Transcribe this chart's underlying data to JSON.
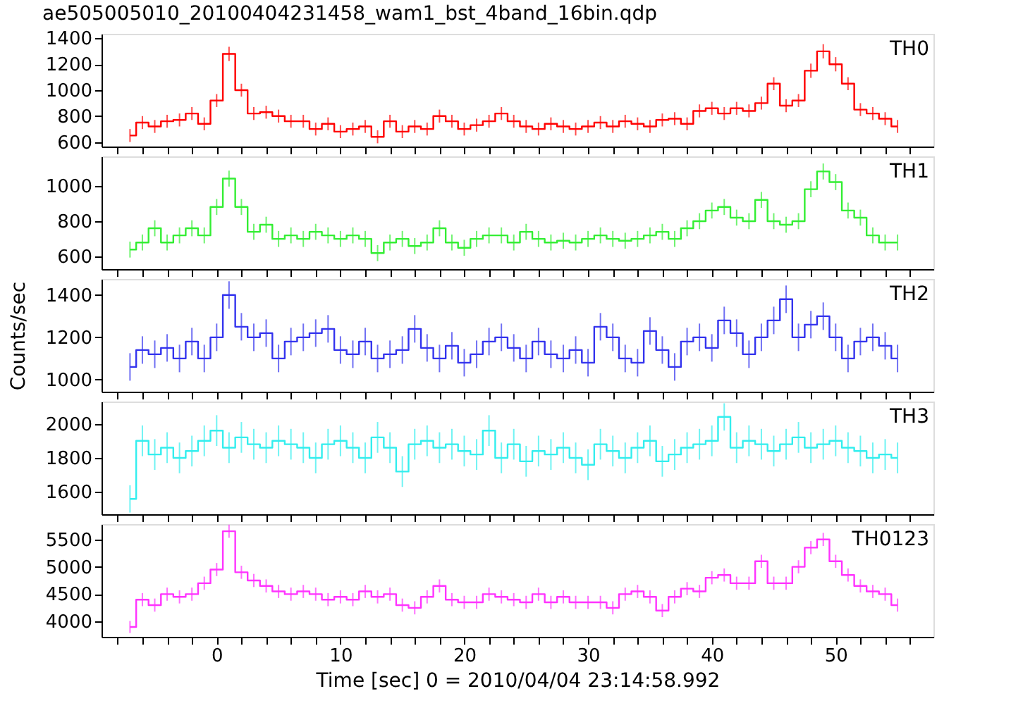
{
  "chart_data": [
    {
      "type": "step",
      "title": "ae505005010_20100404231458_wam1_bst_4band_16bin.qdp",
      "tick_labels": "y",
      "marker": "none",
      "grid": false,
      "xlim": [
        -9.3,
        57.9
      ],
      "ylim": [
        565,
        1435
      ],
      "yticks": [
        600,
        800,
        1000,
        1200,
        1400
      ],
      "xticks": [
        {
          "value": -8,
          "label": null
        },
        {
          "value": -6,
          "label": null
        },
        {
          "value": -4,
          "label": null
        },
        {
          "value": -2,
          "label": null
        },
        0,
        {
          "value": 2,
          "label": null
        },
        {
          "value": 4,
          "label": null
        },
        {
          "value": 6,
          "label": null
        },
        {
          "value": 8,
          "label": null
        },
        10,
        {
          "value": 12,
          "label": null
        },
        {
          "value": 14,
          "label": null
        },
        {
          "value": 16,
          "label": null
        },
        {
          "value": 18,
          "label": null
        },
        20,
        {
          "value": 22,
          "label": null
        },
        {
          "value": 24,
          "label": null
        },
        {
          "value": 26,
          "label": null
        },
        {
          "value": 28,
          "label": null
        },
        30,
        {
          "value": 32,
          "label": null
        },
        {
          "value": 34,
          "label": null
        },
        {
          "value": 36,
          "label": null
        },
        {
          "value": 38,
          "label": null
        },
        40,
        {
          "value": 42,
          "label": null
        },
        {
          "value": 44,
          "label": null
        },
        {
          "value": 46,
          "label": null
        },
        {
          "value": 48,
          "label": null
        },
        50,
        {
          "value": 52,
          "label": null
        },
        {
          "value": 54,
          "label": null
        },
        {
          "value": 56,
          "label": null
        }
      ],
      "x": [
        -7,
        -6,
        -5,
        -4,
        -3,
        -2,
        -1,
        0,
        1,
        2,
        3,
        4,
        5,
        6,
        7,
        8,
        9,
        10,
        11,
        12,
        13,
        14,
        15,
        16,
        17,
        18,
        19,
        20,
        21,
        22,
        23,
        24,
        25,
        26,
        27,
        28,
        29,
        30,
        31,
        32,
        33,
        34,
        35,
        36,
        37,
        38,
        39,
        40,
        41,
        42,
        43,
        44,
        45,
        46,
        47,
        48,
        49,
        50,
        51,
        52,
        53,
        54,
        55
      ],
      "series": [
        {
          "name": "TH0",
          "color": "#ff0000",
          "values": [
            650,
            750,
            720,
            760,
            770,
            820,
            740,
            920,
            1280,
            1000,
            820,
            830,
            800,
            760,
            760,
            700,
            740,
            680,
            700,
            720,
            640,
            760,
            680,
            720,
            700,
            800,
            760,
            700,
            730,
            760,
            820,
            760,
            720,
            700,
            740,
            720,
            700,
            720,
            750,
            720,
            760,
            740,
            720,
            770,
            780,
            740,
            840,
            860,
            820,
            860,
            840,
            900,
            1050,
            880,
            920,
            1150,
            1300,
            1200,
            1050,
            850,
            820,
            780,
            720
          ],
          "errors": [
            50,
            50,
            50,
            50,
            50,
            50,
            50,
            50,
            55,
            50,
            50,
            50,
            50,
            50,
            50,
            50,
            50,
            50,
            50,
            50,
            50,
            50,
            50,
            50,
            50,
            50,
            50,
            50,
            50,
            50,
            50,
            50,
            50,
            50,
            50,
            50,
            50,
            50,
            50,
            50,
            50,
            50,
            50,
            50,
            50,
            50,
            50,
            50,
            50,
            50,
            50,
            50,
            50,
            50,
            50,
            55,
            55,
            55,
            50,
            50,
            50,
            50,
            50
          ]
        }
      ]
    },
    {
      "type": "step",
      "tick_labels": "y",
      "marker": "none",
      "grid": false,
      "xlim": [
        -9.3,
        57.9
      ],
      "ylim": [
        530,
        1165
      ],
      "yticks": [
        600,
        800,
        1000
      ],
      "xticks": [
        {
          "value": -8,
          "label": null
        },
        {
          "value": -6,
          "label": null
        },
        {
          "value": -4,
          "label": null
        },
        {
          "value": -2,
          "label": null
        },
        0,
        {
          "value": 2,
          "label": null
        },
        {
          "value": 4,
          "label": null
        },
        {
          "value": 6,
          "label": null
        },
        {
          "value": 8,
          "label": null
        },
        10,
        {
          "value": 12,
          "label": null
        },
        {
          "value": 14,
          "label": null
        },
        {
          "value": 16,
          "label": null
        },
        {
          "value": 18,
          "label": null
        },
        20,
        {
          "value": 22,
          "label": null
        },
        {
          "value": 24,
          "label": null
        },
        {
          "value": 26,
          "label": null
        },
        {
          "value": 28,
          "label": null
        },
        30,
        {
          "value": 32,
          "label": null
        },
        {
          "value": 34,
          "label": null
        },
        {
          "value": 36,
          "label": null
        },
        {
          "value": 38,
          "label": null
        },
        40,
        {
          "value": 42,
          "label": null
        },
        {
          "value": 44,
          "label": null
        },
        {
          "value": 46,
          "label": null
        },
        {
          "value": 48,
          "label": null
        },
        50,
        {
          "value": 52,
          "label": null
        },
        {
          "value": 54,
          "label": null
        },
        {
          "value": 56,
          "label": null
        }
      ],
      "x": [
        -7,
        -6,
        -5,
        -4,
        -3,
        -2,
        -1,
        0,
        1,
        2,
        3,
        4,
        5,
        6,
        7,
        8,
        9,
        10,
        11,
        12,
        13,
        14,
        15,
        16,
        17,
        18,
        19,
        20,
        21,
        22,
        23,
        24,
        25,
        26,
        27,
        28,
        29,
        30,
        31,
        32,
        33,
        34,
        35,
        36,
        37,
        38,
        39,
        40,
        41,
        42,
        43,
        44,
        45,
        46,
        47,
        48,
        49,
        50,
        51,
        52,
        53,
        54,
        55
      ],
      "series": [
        {
          "name": "TH1",
          "color": "#33ee33",
          "values": [
            640,
            680,
            760,
            680,
            720,
            760,
            720,
            880,
            1040,
            880,
            740,
            780,
            700,
            720,
            700,
            740,
            720,
            700,
            720,
            700,
            620,
            680,
            700,
            660,
            680,
            760,
            680,
            650,
            700,
            720,
            720,
            680,
            740,
            700,
            680,
            690,
            680,
            700,
            720,
            700,
            690,
            700,
            720,
            740,
            700,
            760,
            800,
            860,
            880,
            820,
            800,
            920,
            800,
            780,
            800,
            980,
            1080,
            1020,
            860,
            820,
            720,
            680,
            680
          ],
          "errors": [
            45,
            45,
            45,
            45,
            45,
            45,
            45,
            45,
            45,
            45,
            45,
            45,
            45,
            45,
            45,
            45,
            45,
            45,
            45,
            45,
            45,
            45,
            45,
            45,
            45,
            45,
            45,
            45,
            45,
            45,
            45,
            45,
            45,
            45,
            45,
            45,
            45,
            45,
            45,
            45,
            45,
            45,
            45,
            45,
            45,
            45,
            45,
            45,
            45,
            45,
            45,
            45,
            45,
            45,
            45,
            45,
            45,
            45,
            45,
            45,
            45,
            45,
            45
          ]
        }
      ]
    },
    {
      "type": "step",
      "ylabel": "Counts/sec",
      "tick_labels": "y",
      "marker": "none",
      "grid": false,
      "xlim": [
        -9.3,
        57.9
      ],
      "ylim": [
        943,
        1476
      ],
      "yticks": [
        1000,
        1200,
        1400
      ],
      "xticks": [
        {
          "value": -8,
          "label": null
        },
        {
          "value": -6,
          "label": null
        },
        {
          "value": -4,
          "label": null
        },
        {
          "value": -2,
          "label": null
        },
        0,
        {
          "value": 2,
          "label": null
        },
        {
          "value": 4,
          "label": null
        },
        {
          "value": 6,
          "label": null
        },
        {
          "value": 8,
          "label": null
        },
        10,
        {
          "value": 12,
          "label": null
        },
        {
          "value": 14,
          "label": null
        },
        {
          "value": 16,
          "label": null
        },
        {
          "value": 18,
          "label": null
        },
        20,
        {
          "value": 22,
          "label": null
        },
        {
          "value": 24,
          "label": null
        },
        {
          "value": 26,
          "label": null
        },
        {
          "value": 28,
          "label": null
        },
        30,
        {
          "value": 32,
          "label": null
        },
        {
          "value": 34,
          "label": null
        },
        {
          "value": 36,
          "label": null
        },
        {
          "value": 38,
          "label": null
        },
        40,
        {
          "value": 42,
          "label": null
        },
        {
          "value": 44,
          "label": null
        },
        {
          "value": 46,
          "label": null
        },
        {
          "value": 48,
          "label": null
        },
        50,
        {
          "value": 52,
          "label": null
        },
        {
          "value": 54,
          "label": null
        },
        {
          "value": 56,
          "label": null
        }
      ],
      "x": [
        -7,
        -6,
        -5,
        -4,
        -3,
        -2,
        -1,
        0,
        1,
        2,
        3,
        4,
        5,
        6,
        7,
        8,
        9,
        10,
        11,
        12,
        13,
        14,
        15,
        16,
        17,
        18,
        19,
        20,
        21,
        22,
        23,
        24,
        25,
        26,
        27,
        28,
        29,
        30,
        31,
        32,
        33,
        34,
        35,
        36,
        37,
        38,
        39,
        40,
        41,
        42,
        43,
        44,
        45,
        46,
        47,
        48,
        49,
        50,
        51,
        52,
        53,
        54,
        55
      ],
      "series": [
        {
          "name": "TH2",
          "color": "#3333ee",
          "values": [
            1060,
            1140,
            1120,
            1150,
            1100,
            1180,
            1100,
            1200,
            1400,
            1250,
            1200,
            1220,
            1100,
            1180,
            1200,
            1220,
            1240,
            1140,
            1120,
            1180,
            1100,
            1120,
            1140,
            1240,
            1150,
            1100,
            1160,
            1080,
            1120,
            1180,
            1200,
            1150,
            1100,
            1180,
            1120,
            1100,
            1140,
            1080,
            1250,
            1200,
            1100,
            1080,
            1230,
            1140,
            1060,
            1180,
            1200,
            1150,
            1280,
            1220,
            1120,
            1200,
            1280,
            1380,
            1200,
            1260,
            1300,
            1200,
            1100,
            1180,
            1200,
            1160,
            1100
          ],
          "errors": [
            65,
            65,
            65,
            65,
            65,
            65,
            65,
            65,
            65,
            65,
            65,
            65,
            65,
            65,
            65,
            65,
            65,
            65,
            65,
            65,
            65,
            65,
            65,
            65,
            65,
            65,
            65,
            65,
            65,
            65,
            65,
            65,
            65,
            65,
            65,
            65,
            65,
            65,
            65,
            65,
            65,
            65,
            65,
            65,
            65,
            65,
            65,
            65,
            65,
            65,
            65,
            65,
            65,
            65,
            65,
            65,
            65,
            65,
            65,
            65,
            65,
            65,
            65
          ]
        }
      ]
    },
    {
      "type": "step",
      "tick_labels": "y",
      "marker": "none",
      "grid": false,
      "xlim": [
        -9.3,
        57.9
      ],
      "ylim": [
        1470,
        2130
      ],
      "yticks": [
        1600,
        1800,
        2000
      ],
      "xticks": [
        {
          "value": -8,
          "label": null
        },
        {
          "value": -6,
          "label": null
        },
        {
          "value": -4,
          "label": null
        },
        {
          "value": -2,
          "label": null
        },
        0,
        {
          "value": 2,
          "label": null
        },
        {
          "value": 4,
          "label": null
        },
        {
          "value": 6,
          "label": null
        },
        {
          "value": 8,
          "label": null
        },
        10,
        {
          "value": 12,
          "label": null
        },
        {
          "value": 14,
          "label": null
        },
        {
          "value": 16,
          "label": null
        },
        {
          "value": 18,
          "label": null
        },
        20,
        {
          "value": 22,
          "label": null
        },
        {
          "value": 24,
          "label": null
        },
        {
          "value": 26,
          "label": null
        },
        {
          "value": 28,
          "label": null
        },
        30,
        {
          "value": 32,
          "label": null
        },
        {
          "value": 34,
          "label": null
        },
        {
          "value": 36,
          "label": null
        },
        {
          "value": 38,
          "label": null
        },
        40,
        {
          "value": 42,
          "label": null
        },
        {
          "value": 44,
          "label": null
        },
        {
          "value": 46,
          "label": null
        },
        {
          "value": 48,
          "label": null
        },
        50,
        {
          "value": 52,
          "label": null
        },
        {
          "value": 54,
          "label": null
        },
        {
          "value": 56,
          "label": null
        }
      ],
      "x": [
        -7,
        -6,
        -5,
        -4,
        -3,
        -2,
        -1,
        0,
        1,
        2,
        3,
        4,
        5,
        6,
        7,
        8,
        9,
        10,
        11,
        12,
        13,
        14,
        15,
        16,
        17,
        18,
        19,
        20,
        21,
        22,
        23,
        24,
        25,
        26,
        27,
        28,
        29,
        30,
        31,
        32,
        33,
        34,
        35,
        36,
        37,
        38,
        39,
        40,
        41,
        42,
        43,
        44,
        45,
        46,
        47,
        48,
        49,
        50,
        51,
        52,
        53,
        54,
        55
      ],
      "series": [
        {
          "name": "TH3",
          "color": "#33eeee",
          "values": [
            1560,
            1900,
            1820,
            1860,
            1800,
            1840,
            1900,
            1960,
            1860,
            1920,
            1880,
            1860,
            1900,
            1880,
            1860,
            1800,
            1880,
            1900,
            1860,
            1800,
            1920,
            1860,
            1720,
            1880,
            1900,
            1860,
            1880,
            1840,
            1820,
            1960,
            1800,
            1880,
            1780,
            1840,
            1820,
            1860,
            1800,
            1760,
            1880,
            1840,
            1800,
            1860,
            1900,
            1780,
            1820,
            1860,
            1880,
            1900,
            2040,
            1860,
            1900,
            1880,
            1840,
            1880,
            1920,
            1860,
            1880,
            1900,
            1860,
            1840,
            1800,
            1820,
            1800
          ],
          "errors": [
            80,
            90,
            90,
            90,
            90,
            90,
            90,
            90,
            90,
            90,
            90,
            90,
            90,
            90,
            90,
            90,
            90,
            90,
            90,
            90,
            90,
            90,
            90,
            90,
            90,
            90,
            90,
            90,
            90,
            90,
            90,
            90,
            90,
            90,
            90,
            90,
            90,
            90,
            90,
            90,
            90,
            90,
            90,
            90,
            90,
            90,
            90,
            90,
            80,
            90,
            90,
            90,
            90,
            90,
            90,
            90,
            90,
            90,
            90,
            90,
            90,
            90,
            90
          ]
        }
      ]
    },
    {
      "type": "step",
      "xlabel": "Time [sec] 0 = 2010/04/04 23:14:58.992",
      "marker": "none",
      "grid": false,
      "xlim": [
        -9.3,
        57.9
      ],
      "ylim": [
        3720,
        5780
      ],
      "yticks": [
        4000,
        4500,
        5000,
        5500
      ],
      "xticks": [
        {
          "value": -8,
          "label": null
        },
        {
          "value": -6,
          "label": null
        },
        {
          "value": -4,
          "label": null
        },
        {
          "value": -2,
          "label": null
        },
        0,
        {
          "value": 2,
          "label": null
        },
        {
          "value": 4,
          "label": null
        },
        {
          "value": 6,
          "label": null
        },
        {
          "value": 8,
          "label": null
        },
        10,
        {
          "value": 12,
          "label": null
        },
        {
          "value": 14,
          "label": null
        },
        {
          "value": 16,
          "label": null
        },
        {
          "value": 18,
          "label": null
        },
        20,
        {
          "value": 22,
          "label": null
        },
        {
          "value": 24,
          "label": null
        },
        {
          "value": 26,
          "label": null
        },
        {
          "value": 28,
          "label": null
        },
        30,
        {
          "value": 32,
          "label": null
        },
        {
          "value": 34,
          "label": null
        },
        {
          "value": 36,
          "label": null
        },
        {
          "value": 38,
          "label": null
        },
        40,
        {
          "value": 42,
          "label": null
        },
        {
          "value": 44,
          "label": null
        },
        {
          "value": 46,
          "label": null
        },
        {
          "value": 48,
          "label": null
        },
        50,
        {
          "value": 52,
          "label": null
        },
        {
          "value": 54,
          "label": null
        },
        {
          "value": 56,
          "label": null
        }
      ],
      "x": [
        -7,
        -6,
        -5,
        -4,
        -3,
        -2,
        -1,
        0,
        1,
        2,
        3,
        4,
        5,
        6,
        7,
        8,
        9,
        10,
        11,
        12,
        13,
        14,
        15,
        16,
        17,
        18,
        19,
        20,
        21,
        22,
        23,
        24,
        25,
        26,
        27,
        28,
        29,
        30,
        31,
        32,
        33,
        34,
        35,
        36,
        37,
        38,
        39,
        40,
        41,
        42,
        43,
        44,
        45,
        46,
        47,
        48,
        49,
        50,
        51,
        52,
        53,
        54,
        55
      ],
      "series": [
        {
          "name": "TH0123",
          "color": "#ff33ff",
          "values": [
            3900,
            4400,
            4300,
            4500,
            4450,
            4500,
            4700,
            4950,
            5650,
            4900,
            4750,
            4650,
            4550,
            4500,
            4550,
            4500,
            4400,
            4450,
            4400,
            4550,
            4450,
            4500,
            4300,
            4250,
            4450,
            4650,
            4400,
            4350,
            4350,
            4500,
            4450,
            4400,
            4350,
            4500,
            4350,
            4450,
            4350,
            4350,
            4350,
            4250,
            4500,
            4550,
            4450,
            4200,
            4450,
            4600,
            4550,
            4800,
            4850,
            4700,
            4700,
            5100,
            4700,
            4700,
            5000,
            5350,
            5500,
            5100,
            4850,
            4650,
            4550,
            4500,
            4300
          ],
          "errors": [
            110,
            120,
            120,
            120,
            120,
            120,
            120,
            120,
            120,
            120,
            120,
            120,
            120,
            120,
            120,
            120,
            120,
            120,
            120,
            120,
            120,
            120,
            120,
            120,
            120,
            120,
            120,
            120,
            120,
            120,
            120,
            120,
            120,
            120,
            120,
            120,
            120,
            120,
            120,
            120,
            120,
            120,
            120,
            120,
            120,
            120,
            120,
            120,
            120,
            120,
            120,
            120,
            120,
            120,
            120,
            120,
            120,
            120,
            120,
            120,
            120,
            120,
            120
          ]
        }
      ]
    }
  ]
}
